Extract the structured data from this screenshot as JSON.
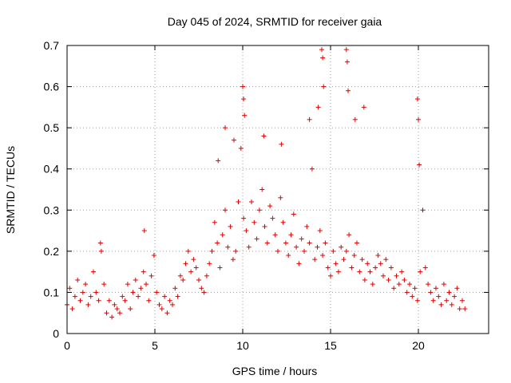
{
  "chart_data": {
    "type": "scatter",
    "title": "Day 045 of 2024, SRMTID for receiver gaia",
    "xlabel": "GPS time / hours",
    "ylabel": "SRMTID / TECUs",
    "xlim": [
      0,
      24
    ],
    "ylim": [
      0,
      0.7
    ],
    "xticks": [
      0,
      5,
      10,
      15,
      20
    ],
    "xtick_labels": [
      "0",
      "5",
      "10",
      "15",
      "20"
    ],
    "yticks": [
      0,
      0.1,
      0.2,
      0.3,
      0.4,
      0.5,
      0.6,
      0.7
    ],
    "ytick_labels": [
      "0",
      "0.1",
      "0.2",
      "0.3",
      "0.4",
      "0.5",
      "0.6",
      "0.7"
    ],
    "grid": true,
    "marker": "plus",
    "color": "#e00000",
    "series": [
      {
        "name": "SRMTID",
        "x": [
          0.0,
          0.15,
          0.3,
          0.45,
          0.6,
          0.75,
          0.9,
          1.05,
          1.2,
          1.35,
          1.5,
          1.65,
          1.8,
          1.95,
          2.1,
          2.25,
          2.4,
          2.55,
          2.7,
          2.85,
          3.0,
          3.15,
          3.3,
          3.45,
          3.6,
          3.75,
          3.9,
          4.05,
          4.2,
          4.35,
          4.5,
          4.65,
          4.8,
          4.95,
          5.1,
          5.25,
          5.4,
          5.55,
          5.7,
          5.85,
          6.0,
          6.15,
          6.3,
          6.45,
          6.6,
          6.75,
          6.9,
          7.05,
          7.2,
          7.35,
          7.5,
          7.65,
          7.8,
          7.95,
          8.1,
          8.25,
          8.4,
          8.55,
          8.7,
          8.85,
          9.0,
          9.15,
          9.3,
          9.45,
          9.6,
          9.75,
          9.9,
          10.05,
          10.2,
          10.35,
          10.5,
          10.65,
          10.8,
          10.95,
          11.1,
          11.25,
          11.4,
          11.55,
          11.7,
          11.85,
          12.0,
          12.15,
          12.3,
          12.45,
          12.6,
          12.75,
          12.9,
          13.05,
          13.2,
          13.35,
          13.5,
          13.65,
          13.8,
          13.95,
          14.1,
          14.25,
          14.4,
          14.55,
          14.7,
          14.85,
          15.0,
          15.15,
          15.3,
          15.45,
          15.6,
          15.75,
          15.9,
          16.05,
          16.2,
          16.35,
          16.5,
          16.65,
          16.8,
          16.95,
          17.1,
          17.25,
          17.4,
          17.55,
          17.7,
          17.85,
          18.0,
          18.15,
          18.3,
          18.45,
          18.6,
          18.75,
          18.9,
          19.05,
          19.2,
          19.35,
          19.5,
          19.65,
          19.8,
          19.95,
          20.1,
          20.25,
          20.4,
          20.55,
          20.7,
          20.85,
          21.0,
          21.15,
          21.3,
          21.45,
          21.6,
          21.75,
          21.9,
          22.05,
          22.2,
          22.35,
          22.5,
          22.65
        ],
        "y": [
          0.07,
          0.11,
          0.06,
          0.09,
          0.13,
          0.08,
          0.1,
          0.12,
          0.07,
          0.09,
          0.15,
          0.1,
          0.08,
          0.2,
          0.12,
          0.05,
          0.08,
          0.04,
          0.07,
          0.06,
          0.05,
          0.09,
          0.08,
          0.12,
          0.06,
          0.1,
          0.13,
          0.09,
          0.11,
          0.15,
          0.12,
          0.08,
          0.14,
          0.19,
          0.1,
          0.07,
          0.06,
          0.09,
          0.05,
          0.08,
          0.07,
          0.11,
          0.09,
          0.14,
          0.13,
          0.17,
          0.2,
          0.15,
          0.18,
          0.16,
          0.13,
          0.11,
          0.1,
          0.14,
          0.17,
          0.2,
          0.27,
          0.22,
          0.16,
          0.24,
          0.3,
          0.21,
          0.26,
          0.18,
          0.2,
          0.32,
          0.45,
          0.28,
          0.25,
          0.21,
          0.32,
          0.27,
          0.23,
          0.3,
          0.35,
          0.26,
          0.22,
          0.31,
          0.28,
          0.24,
          0.2,
          0.33,
          0.27,
          0.22,
          0.19,
          0.24,
          0.29,
          0.21,
          0.17,
          0.23,
          0.2,
          0.26,
          0.22,
          0.4,
          0.18,
          0.21,
          0.25,
          0.19,
          0.22,
          0.16,
          0.14,
          0.2,
          0.17,
          0.15,
          0.21,
          0.18,
          0.2,
          0.24,
          0.16,
          0.19,
          0.22,
          0.15,
          0.18,
          0.13,
          0.17,
          0.15,
          0.12,
          0.16,
          0.19,
          0.17,
          0.14,
          0.18,
          0.13,
          0.16,
          0.11,
          0.14,
          0.12,
          0.15,
          0.13,
          0.1,
          0.12,
          0.09,
          0.11,
          0.08,
          0.15,
          0.3,
          0.16,
          0.12,
          0.1,
          0.08,
          0.11,
          0.09,
          0.07,
          0.12,
          0.08,
          0.1,
          0.07,
          0.09,
          0.11,
          0.06,
          0.08,
          0.06
        ]
      }
    ],
    "spikes": [
      {
        "x": 1.9,
        "y": 0.22
      },
      {
        "x": 4.4,
        "y": 0.25
      },
      {
        "x": 8.6,
        "y": 0.42
      },
      {
        "x": 9.0,
        "y": 0.5
      },
      {
        "x": 9.5,
        "y": 0.47
      },
      {
        "x": 10.0,
        "y": 0.6
      },
      {
        "x": 10.05,
        "y": 0.57
      },
      {
        "x": 10.1,
        "y": 0.53
      },
      {
        "x": 11.2,
        "y": 0.48
      },
      {
        "x": 12.2,
        "y": 0.46
      },
      {
        "x": 13.8,
        "y": 0.52
      },
      {
        "x": 14.3,
        "y": 0.55
      },
      {
        "x": 14.5,
        "y": 0.69
      },
      {
        "x": 14.55,
        "y": 0.67
      },
      {
        "x": 14.6,
        "y": 0.6
      },
      {
        "x": 15.9,
        "y": 0.69
      },
      {
        "x": 15.95,
        "y": 0.66
      },
      {
        "x": 16.0,
        "y": 0.59
      },
      {
        "x": 16.4,
        "y": 0.52
      },
      {
        "x": 16.9,
        "y": 0.55
      },
      {
        "x": 19.95,
        "y": 0.57
      },
      {
        "x": 20.0,
        "y": 0.52
      },
      {
        "x": 20.05,
        "y": 0.41
      }
    ]
  }
}
